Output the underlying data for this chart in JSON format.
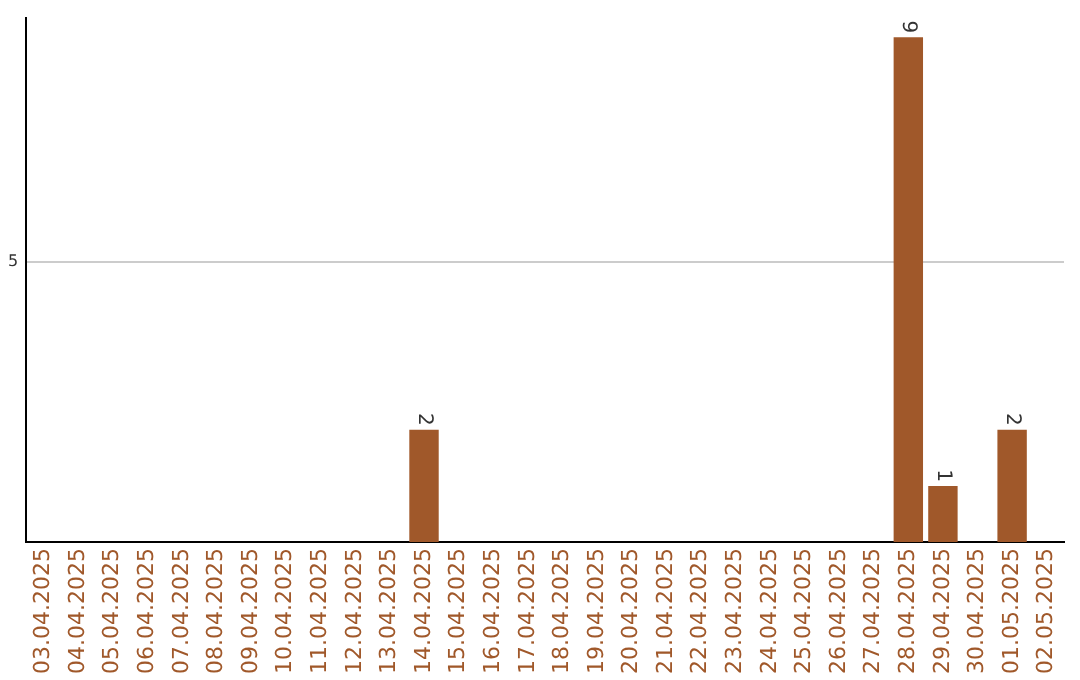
{
  "chart_data": {
    "type": "bar",
    "categories": [
      "03.04.2025",
      "04.04.2025",
      "05.04.2025",
      "06.04.2025",
      "07.04.2025",
      "08.04.2025",
      "09.04.2025",
      "10.04.2025",
      "11.04.2025",
      "12.04.2025",
      "13.04.2025",
      "14.04.2025",
      "15.04.2025",
      "16.04.2025",
      "17.04.2025",
      "18.04.2025",
      "19.04.2025",
      "20.04.2025",
      "21.04.2025",
      "22.04.2025",
      "23.04.2025",
      "24.04.2025",
      "25.04.2025",
      "26.04.2025",
      "27.04.2025",
      "28.04.2025",
      "29.04.2025",
      "30.04.2025",
      "01.05.2025",
      "02.05.2025"
    ],
    "values": [
      0,
      0,
      0,
      0,
      0,
      0,
      0,
      0,
      0,
      0,
      0,
      2,
      0,
      0,
      0,
      0,
      0,
      0,
      0,
      0,
      0,
      0,
      0,
      0,
      0,
      9,
      1,
      0,
      2,
      0
    ],
    "value_labels": [
      null,
      null,
      null,
      null,
      null,
      null,
      null,
      null,
      null,
      null,
      null,
      "2",
      null,
      null,
      null,
      null,
      null,
      null,
      null,
      null,
      null,
      null,
      null,
      null,
      null,
      "9",
      "1",
      null,
      "2",
      null
    ],
    "color": "#a0582a",
    "ylim": [
      0,
      9.35
    ],
    "yticks": [
      5
    ],
    "grid": "y",
    "legend": false
  }
}
